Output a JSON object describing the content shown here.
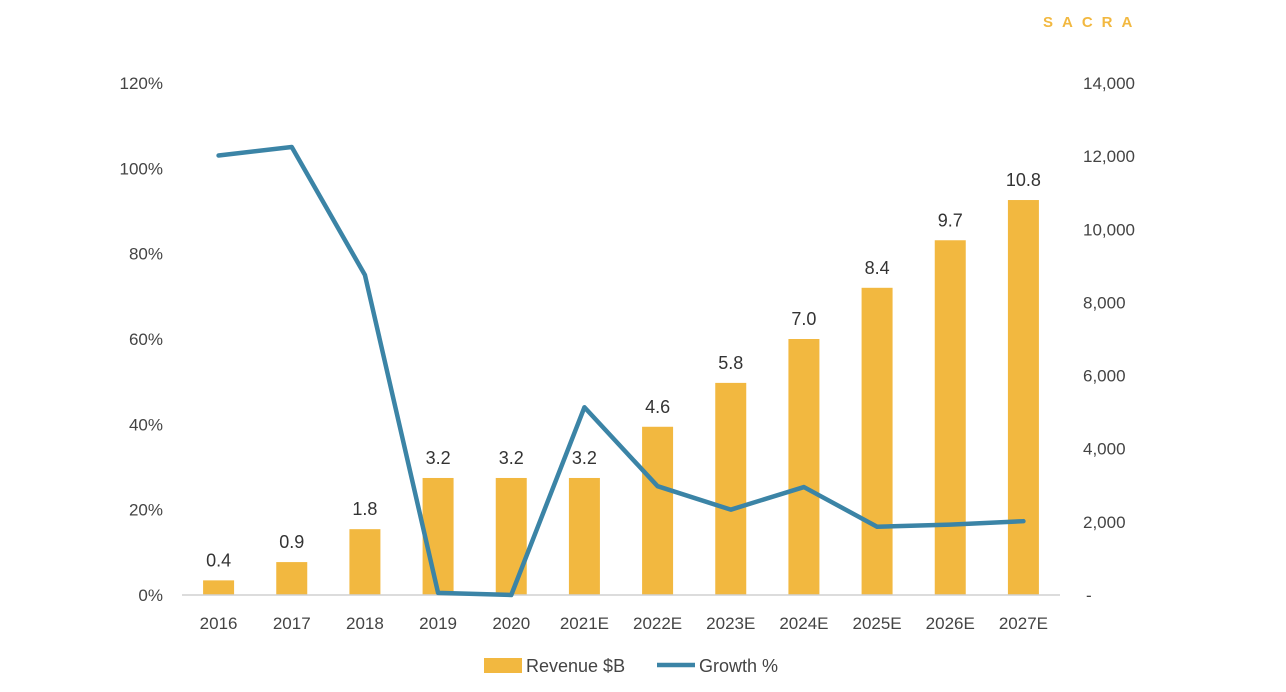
{
  "brand": "SACRA",
  "chart_data": {
    "type": "bar+line",
    "categories": [
      "2016",
      "2017",
      "2018",
      "2019",
      "2020",
      "2021E",
      "2022E",
      "2023E",
      "2024E",
      "2025E",
      "2026E",
      "2027E"
    ],
    "series": [
      {
        "name": "Revenue $B",
        "kind": "bar",
        "axis": "right",
        "values": [
          400,
          900,
          1800,
          3200,
          3200,
          3200,
          4600,
          5800,
          7000,
          8400,
          9700,
          10800
        ],
        "labels": [
          "0.4",
          "0.9",
          "1.8",
          "3.2",
          "3.2",
          "3.2",
          "4.6",
          "5.8",
          "7.0",
          "8.4",
          "9.7",
          "10.8"
        ],
        "color": "#F2B840"
      },
      {
        "name": "Growth %",
        "kind": "line",
        "axis": "left",
        "values": [
          103,
          105,
          75,
          0.5,
          0,
          44,
          25.5,
          20,
          25.3,
          16,
          16.5,
          17.3
        ],
        "color": "#3B84A6"
      }
    ],
    "left_axis": {
      "range": [
        0,
        120
      ],
      "ticks": [
        "0%",
        "20%",
        "40%",
        "60%",
        "80%",
        "100%",
        "120%"
      ]
    },
    "right_axis": {
      "range": [
        0,
        14000
      ],
      "ticks": [
        "-",
        "2,000",
        "4,000",
        "6,000",
        "8,000",
        "10,000",
        "12,000",
        "14,000"
      ]
    },
    "legend": {
      "position": "bottom-center",
      "entries": [
        "Revenue $B",
        "Growth %"
      ]
    },
    "grid": false
  }
}
